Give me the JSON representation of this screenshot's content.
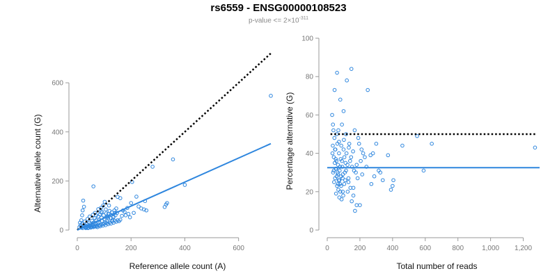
{
  "title": "rs6559 - ENSG00000108523",
  "subtitle": {
    "prefix": "p-value <= 2×10",
    "exponent": "-311"
  },
  "chart_data": [
    {
      "type": "scatter",
      "xlabel": "Reference allele count (A)",
      "ylabel": "Alternative allele count (G)",
      "xlim": [
        0,
        720
      ],
      "ylim": [
        0,
        640
      ],
      "x_ticks": [
        0,
        200,
        400,
        600
      ],
      "x_tick_labels": [
        "0",
        "200",
        "400",
        "600"
      ],
      "y_ticks": [
        0,
        200,
        400,
        600
      ],
      "y_tick_labels": [
        "0",
        "200",
        "400",
        "600"
      ],
      "grid": false,
      "point_color": "#2e86de",
      "reference_line": {
        "style": "dotted",
        "color": "#000000",
        "from": [
          0,
          0
        ],
        "to": [
          720,
          720
        ]
      },
      "fit_line": {
        "color": "#2e86de",
        "from": [
          0,
          0
        ],
        "to": [
          720,
          352
        ]
      },
      "points": [
        [
          720,
          547
        ],
        [
          356,
          288
        ],
        [
          400,
          184
        ],
        [
          280,
          258
        ],
        [
          204,
          196
        ],
        [
          60,
          178
        ],
        [
          334,
          110
        ],
        [
          325,
          94
        ],
        [
          330,
          104
        ],
        [
          252,
          118
        ],
        [
          248,
          84
        ],
        [
          257,
          80
        ],
        [
          228,
          96
        ],
        [
          220,
          136
        ],
        [
          200,
          110
        ],
        [
          190,
          66
        ],
        [
          180,
          60
        ],
        [
          170,
          80
        ],
        [
          160,
          130
        ],
        [
          150,
          135
        ],
        [
          145,
          88
        ],
        [
          140,
          70
        ],
        [
          135,
          55
        ],
        [
          130,
          40
        ],
        [
          125,
          62
        ],
        [
          120,
          78
        ],
        [
          118,
          100
        ],
        [
          115,
          48
        ],
        [
          112,
          35
        ],
        [
          110,
          52
        ],
        [
          108,
          68
        ],
        [
          105,
          30
        ],
        [
          100,
          45
        ],
        [
          98,
          60
        ],
        [
          95,
          25
        ],
        [
          92,
          38
        ],
        [
          90,
          50
        ],
        [
          88,
          72
        ],
        [
          85,
          20
        ],
        [
          82,
          42
        ],
        [
          80,
          32
        ],
        [
          78,
          55
        ],
        [
          75,
          28
        ],
        [
          72,
          18
        ],
        [
          70,
          40
        ],
        [
          68,
          25
        ],
        [
          65,
          48
        ],
        [
          62,
          15
        ],
        [
          60,
          30
        ],
        [
          58,
          22
        ],
        [
          55,
          38
        ],
        [
          52,
          12
        ],
        [
          50,
          25
        ],
        [
          48,
          18
        ],
        [
          45,
          30
        ],
        [
          42,
          10
        ],
        [
          40,
          20
        ],
        [
          38,
          15
        ],
        [
          35,
          25
        ],
        [
          32,
          8
        ],
        [
          30,
          18
        ],
        [
          28,
          12
        ],
        [
          25,
          95
        ],
        [
          22,
          120
        ],
        [
          20,
          80
        ],
        [
          18,
          60
        ],
        [
          15,
          40
        ],
        [
          12,
          20
        ],
        [
          10,
          30
        ],
        [
          8,
          12
        ],
        [
          15,
          10
        ],
        [
          20,
          8
        ],
        [
          25,
          15
        ],
        [
          30,
          10
        ],
        [
          35,
          12
        ],
        [
          40,
          8
        ],
        [
          45,
          15
        ],
        [
          50,
          10
        ],
        [
          55,
          14
        ],
        [
          60,
          12
        ],
        [
          65,
          16
        ],
        [
          70,
          14
        ],
        [
          75,
          12
        ],
        [
          80,
          18
        ],
        [
          85,
          15
        ],
        [
          90,
          22
        ],
        [
          95,
          18
        ],
        [
          100,
          25
        ],
        [
          105,
          20
        ],
        [
          110,
          28
        ],
        [
          115,
          24
        ],
        [
          120,
          30
        ],
        [
          125,
          26
        ],
        [
          130,
          35
        ],
        [
          135,
          30
        ],
        [
          140,
          38
        ],
        [
          145,
          34
        ],
        [
          150,
          40
        ],
        [
          155,
          36
        ],
        [
          160,
          42
        ],
        [
          88,
          90
        ],
        [
          102,
          115
        ],
        [
          96,
          100
        ],
        [
          78,
          85
        ],
        [
          66,
          70
        ],
        [
          58,
          62
        ],
        [
          46,
          55
        ],
        [
          38,
          45
        ],
        [
          28,
          35
        ],
        [
          18,
          25
        ],
        [
          70,
          60
        ],
        [
          84,
          64
        ],
        [
          92,
          74
        ],
        [
          106,
          84
        ],
        [
          112,
          56
        ],
        [
          124,
          48
        ],
        [
          134,
          52
        ],
        [
          142,
          60
        ],
        [
          116,
          66
        ],
        [
          128,
          72
        ],
        [
          138,
          80
        ],
        [
          148,
          70
        ],
        [
          166,
          58
        ],
        [
          176,
          74
        ],
        [
          186,
          90
        ],
        [
          196,
          52
        ],
        [
          210,
          70
        ],
        [
          238,
          88
        ]
      ]
    },
    {
      "type": "scatter",
      "xlabel": "Total number of reads",
      "ylabel": "Percentage alternative (G)",
      "xlim": [
        0,
        1300
      ],
      "ylim": [
        0,
        100
      ],
      "x_ticks": [
        0,
        200,
        400,
        600,
        800,
        1000,
        1200
      ],
      "x_tick_labels": [
        "0",
        "200",
        "400",
        "600",
        "800",
        "1,000",
        "1,200"
      ],
      "y_ticks": [
        0,
        20,
        40,
        60,
        80,
        100
      ],
      "y_tick_labels": [
        "0",
        "20",
        "40",
        "60",
        "80",
        "100"
      ],
      "grid": false,
      "point_color": "#2e86de",
      "reference_line": {
        "style": "dotted",
        "color": "#000000",
        "y": 50,
        "x_range": [
          20,
          1280
        ]
      },
      "fit_line": {
        "color": "#2e86de",
        "y": 32.5,
        "x_range": [
          0,
          1300
        ]
      },
      "points": [
        [
          1272,
          43
        ],
        [
          640,
          45
        ],
        [
          590,
          31
        ],
        [
          550,
          49
        ],
        [
          460,
          44
        ],
        [
          405,
          26
        ],
        [
          400,
          23
        ],
        [
          390,
          21
        ],
        [
          372,
          39
        ],
        [
          340,
          26
        ],
        [
          325,
          30
        ],
        [
          315,
          31
        ],
        [
          300,
          45
        ],
        [
          280,
          40
        ],
        [
          265,
          39
        ],
        [
          248,
          73
        ],
        [
          230,
          38
        ],
        [
          220,
          40
        ],
        [
          210,
          42
        ],
        [
          205,
          36
        ],
        [
          195,
          45
        ],
        [
          190,
          48
        ],
        [
          180,
          34
        ],
        [
          175,
          30
        ],
        [
          168,
          52
        ],
        [
          160,
          22
        ],
        [
          158,
          41
        ],
        [
          152,
          33
        ],
        [
          148,
          84
        ],
        [
          140,
          36
        ],
        [
          135,
          45
        ],
        [
          130,
          27
        ],
        [
          125,
          20
        ],
        [
          120,
          78
        ],
        [
          115,
          50
        ],
        [
          112,
          35
        ],
        [
          108,
          30
        ],
        [
          104,
          24
        ],
        [
          100,
          42
        ],
        [
          98,
          18
        ],
        [
          95,
          29
        ],
        [
          92,
          33
        ],
        [
          90,
          55
        ],
        [
          88,
          16
        ],
        [
          85,
          28
        ],
        [
          82,
          37
        ],
        [
          80,
          20
        ],
        [
          78,
          24
        ],
        [
          76,
          31
        ],
        [
          74,
          17
        ],
        [
          72,
          40
        ],
        [
          70,
          26
        ],
        [
          68,
          21
        ],
        [
          66,
          34
        ],
        [
          64,
          30
        ],
        [
          62,
          45
        ],
        [
          60,
          23
        ],
        [
          58,
          28
        ],
        [
          56,
          36
        ],
        [
          54,
          19
        ],
        [
          52,
          32
        ],
        [
          50,
          42
        ],
        [
          48,
          27
        ],
        [
          46,
          35
        ],
        [
          44,
          48
        ],
        [
          42,
          25
        ],
        [
          40,
          38
        ],
        [
          38,
          52
        ],
        [
          36,
          30
        ],
        [
          35,
          55
        ],
        [
          34,
          44
        ],
        [
          32,
          40
        ],
        [
          30,
          60
        ],
        [
          60,
          82
        ],
        [
          45,
          73
        ],
        [
          80,
          68
        ],
        [
          100,
          62
        ],
        [
          170,
          10
        ],
        [
          180,
          13
        ],
        [
          200,
          13
        ],
        [
          150,
          15
        ],
        [
          160,
          18
        ],
        [
          130,
          25
        ],
        [
          115,
          31
        ],
        [
          105,
          38
        ],
        [
          95,
          20
        ],
        [
          85,
          23
        ],
        [
          75,
          26
        ],
        [
          65,
          29
        ],
        [
          55,
          32
        ],
        [
          72,
          46
        ],
        [
          86,
          44
        ],
        [
          102,
          47
        ],
        [
          118,
          40
        ],
        [
          132,
          43
        ],
        [
          146,
          38
        ],
        [
          164,
          31
        ],
        [
          186,
          27
        ],
        [
          214,
          29
        ],
        [
          240,
          33
        ],
        [
          270,
          24
        ],
        [
          288,
          28
        ],
        [
          58,
          50
        ],
        [
          68,
          52
        ],
        [
          90,
          36
        ],
        [
          110,
          26
        ],
        [
          124,
          34
        ],
        [
          142,
          22
        ],
        [
          94,
          27
        ],
        [
          78,
          33
        ],
        [
          66,
          24
        ],
        [
          52,
          37
        ],
        [
          48,
          42
        ],
        [
          40,
          31
        ]
      ]
    }
  ]
}
